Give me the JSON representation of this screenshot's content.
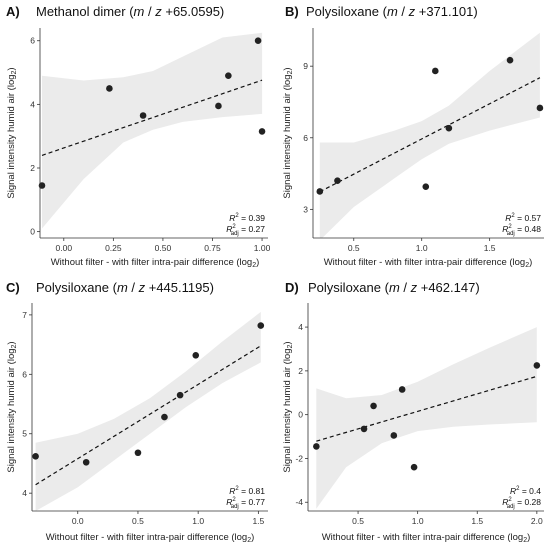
{
  "chart_data": [
    {
      "type": "scatter",
      "panel_letter": "A)",
      "title_parts": [
        "Methanol dimer (",
        "m",
        "/",
        "z",
        " +65.0595)"
      ],
      "xlabel_parts": [
        "Without filter - with filter intra-pair difference (log",
        "2",
        ")"
      ],
      "ylabel_parts": [
        "Signal intensity humid air (log",
        "2",
        ")"
      ],
      "xlim": [
        -0.12,
        1.03
      ],
      "ylim": [
        -0.2,
        6.4
      ],
      "xticks": [
        0.0,
        0.25,
        0.5,
        0.75,
        1.0
      ],
      "xtick_labels": [
        "0.00",
        "0.25",
        "0.50",
        "0.75",
        "1.00"
      ],
      "yticks": [
        0,
        2,
        4,
        6
      ],
      "ytick_labels": [
        "0",
        "2",
        "4",
        "6"
      ],
      "x": [
        -0.11,
        0.23,
        0.4,
        0.78,
        0.83,
        0.98,
        1.0
      ],
      "y": [
        1.45,
        4.5,
        3.65,
        3.95,
        4.9,
        6.0,
        3.15
      ],
      "fit": {
        "slope": 2.13,
        "intercept": 2.63
      },
      "confidence_band": {
        "x": [
          -0.11,
          0.1,
          0.3,
          0.45,
          0.6,
          0.8,
          1.0
        ],
        "lower": [
          0.1,
          1.65,
          2.8,
          3.2,
          3.45,
          3.6,
          3.7
        ],
        "upper": [
          4.9,
          4.75,
          4.85,
          5.05,
          5.5,
          6.1,
          6.25
        ]
      },
      "r2_label": "R",
      "r2_sup": "2",
      "r2_value": " = 0.39",
      "r2adj_label": "R",
      "r2adj_sub": "adj",
      "r2adj_sup": "2",
      "r2adj_value": " = 0.27",
      "grid": false
    },
    {
      "type": "scatter",
      "panel_letter": "B)",
      "title_parts": [
        "Polysiloxane (",
        "m",
        "/",
        "z",
        " +371.101)"
      ],
      "xlabel_parts": [
        "Without filter - with filter intra-pair difference (log",
        "2",
        ")"
      ],
      "ylabel_parts": [
        "Signal intensity humid air (log",
        "2",
        ")"
      ],
      "xlim": [
        0.2,
        1.9
      ],
      "ylim": [
        1.8,
        10.6
      ],
      "xticks": [
        0.5,
        1.0,
        1.5
      ],
      "xtick_labels": [
        "0.5",
        "1.0",
        "1.5"
      ],
      "yticks": [
        3,
        6,
        9
      ],
      "ytick_labels": [
        "3",
        "6",
        "9"
      ],
      "x": [
        0.25,
        0.38,
        1.03,
        1.1,
        1.2,
        1.65,
        1.87
      ],
      "y": [
        3.75,
        4.2,
        3.95,
        8.8,
        6.4,
        9.25,
        7.25
      ],
      "fit": {
        "slope": 2.95,
        "intercept": 3.0
      },
      "confidence_band": {
        "x": [
          0.25,
          0.5,
          0.8,
          1.0,
          1.2,
          1.5,
          1.87
        ],
        "lower": [
          1.7,
          3.1,
          4.3,
          5.1,
          5.75,
          6.3,
          6.85
        ],
        "upper": [
          5.8,
          5.8,
          6.3,
          6.7,
          7.35,
          8.8,
          10.4
        ]
      },
      "r2_label": "R",
      "r2_sup": "2",
      "r2_value": " = 0.57",
      "r2adj_label": "R",
      "r2adj_sub": "adj",
      "r2adj_sup": "2",
      "r2adj_value": " = 0.48",
      "grid": false
    },
    {
      "type": "scatter",
      "panel_letter": "C)",
      "title_parts": [
        "Polysiloxane (",
        "m",
        "/",
        "z",
        " +445.1195)"
      ],
      "xlabel_parts": [
        "Without filter - with filter intra-pair difference (log",
        "2",
        ")"
      ],
      "ylabel_parts": [
        "Signal intensity humid air (log",
        "2",
        ")"
      ],
      "xlim": [
        -0.38,
        1.58
      ],
      "ylim": [
        3.7,
        7.2
      ],
      "xticks": [
        0.0,
        0.5,
        1.0,
        1.5
      ],
      "xtick_labels": [
        "0.0",
        "0.5",
        "1.0",
        "1.5"
      ],
      "yticks": [
        4,
        5,
        6,
        7
      ],
      "ytick_labels": [
        "4",
        "5",
        "6",
        "7"
      ],
      "x": [
        -0.35,
        0.07,
        0.5,
        0.72,
        0.85,
        0.98,
        1.52
      ],
      "y": [
        4.62,
        4.52,
        4.68,
        5.28,
        5.65,
        6.32,
        6.82
      ],
      "fit": {
        "slope": 1.25,
        "intercept": 4.58
      },
      "confidence_band": {
        "x": [
          -0.35,
          0.0,
          0.3,
          0.6,
          0.9,
          1.2,
          1.52
        ],
        "lower": [
          3.7,
          4.1,
          4.55,
          5.0,
          5.45,
          5.85,
          6.2
        ],
        "upper": [
          4.85,
          5.0,
          5.25,
          5.6,
          6.05,
          6.55,
          7.05
        ]
      },
      "r2_label": "R",
      "r2_sup": "2",
      "r2_value": " = 0.81",
      "r2adj_label": "R",
      "r2adj_sub": "adj",
      "r2adj_sup": "2",
      "r2adj_value": " = 0.77",
      "grid": false
    },
    {
      "type": "scatter",
      "panel_letter": "D)",
      "title_parts": [
        "Polysiloxane (",
        "m",
        "/",
        "z",
        " +462.147)"
      ],
      "xlabel_parts": [
        "Without filter - with filter intra-pair difference (log",
        "2",
        ")"
      ],
      "ylabel_parts": [
        "Signal intensity humid air (log",
        "2",
        ")"
      ],
      "xlim": [
        0.08,
        2.06
      ],
      "ylim": [
        -4.4,
        5.1
      ],
      "xticks": [
        0.5,
        1.0,
        1.5,
        2.0
      ],
      "xtick_labels": [
        "0.5",
        "1.0",
        "1.5",
        "2.0"
      ],
      "yticks": [
        -4,
        -2,
        0,
        2,
        4
      ],
      "ytick_labels": [
        "-4",
        "-2",
        "0",
        "2",
        "4"
      ],
      "x": [
        0.15,
        0.55,
        0.63,
        0.8,
        0.87,
        0.97,
        2.0
      ],
      "y": [
        -1.45,
        -0.65,
        0.4,
        -0.95,
        1.15,
        -2.4,
        2.25
      ],
      "fit": {
        "slope": 1.6,
        "intercept": -1.45
      },
      "confidence_band": {
        "x": [
          0.15,
          0.4,
          0.7,
          1.0,
          1.3,
          1.6,
          2.0
        ],
        "lower": [
          -4.3,
          -2.4,
          -1.3,
          -0.75,
          -0.55,
          -0.45,
          -0.35
        ],
        "upper": [
          1.2,
          0.75,
          0.9,
          1.5,
          2.3,
          3.05,
          4.0
        ]
      },
      "r2_label": "R",
      "r2_sup": "2",
      "r2_value": " = 0.4",
      "r2adj_label": "R",
      "r2adj_sub": "adj",
      "r2adj_sup": "2",
      "r2adj_value": " = 0.28",
      "grid": false
    }
  ]
}
